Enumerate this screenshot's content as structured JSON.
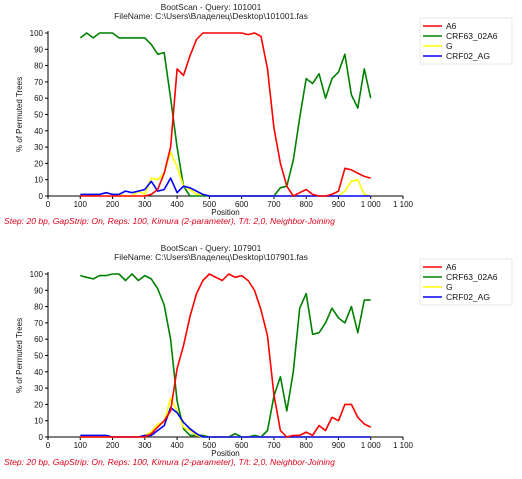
{
  "chart_data": [
    {
      "type": "line",
      "title": "BootScan - Query: 101001",
      "subtitle": "FileName: C:\\Users\\Владелец\\Desktop\\101001.fas",
      "xlabel": "Position",
      "ylabel": "% of Permuted Trees",
      "xlim": [
        0,
        1100
      ],
      "ylim": [
        0,
        100
      ],
      "x_ticks": [
        "0",
        "100",
        "200",
        "300",
        "400",
        "500",
        "600",
        "700",
        "800",
        "900",
        "1 000",
        "1 100"
      ],
      "y_ticks": [
        "0",
        "10",
        "20",
        "30",
        "40",
        "50",
        "60",
        "70",
        "80",
        "90",
        "100"
      ],
      "grid": false,
      "legend_position": "top-right",
      "caption": "Step: 20 bp, GapStrip: On, Reps: 100, Kimura (2-parameter), T/t: 2,0, Neighbor-Joining",
      "series": [
        {
          "name": "A6",
          "color": "#ff0000",
          "x": [
            100,
            120,
            140,
            160,
            180,
            200,
            220,
            240,
            260,
            280,
            300,
            320,
            340,
            360,
            380,
            400,
            420,
            440,
            460,
            480,
            500,
            520,
            540,
            560,
            580,
            600,
            620,
            640,
            660,
            680,
            700,
            720,
            740,
            760,
            780,
            800,
            820,
            840,
            860,
            880,
            900,
            920,
            940,
            960,
            980,
            1000
          ],
          "y": [
            0,
            0,
            0,
            0,
            0,
            0,
            0,
            0,
            0,
            0,
            0,
            1,
            4,
            14,
            30,
            78,
            74,
            86,
            96,
            100,
            100,
            100,
            100,
            100,
            100,
            100,
            99,
            100,
            98,
            78,
            42,
            20,
            6,
            0,
            2,
            4,
            1,
            0,
            0,
            1,
            3,
            17,
            16,
            14,
            12,
            11
          ]
        },
        {
          "name": "CRF63_02A6",
          "color": "#008000",
          "x": [
            100,
            120,
            140,
            160,
            180,
            200,
            220,
            240,
            260,
            280,
            300,
            320,
            340,
            360,
            380,
            400,
            420,
            440,
            460,
            480,
            500,
            520,
            540,
            560,
            580,
            600,
            620,
            640,
            660,
            680,
            700,
            720,
            740,
            760,
            780,
            800,
            820,
            840,
            860,
            880,
            900,
            920,
            940,
            960,
            980,
            1000
          ],
          "y": [
            97,
            100,
            97,
            100,
            100,
            100,
            97,
            97,
            97,
            97,
            97,
            93,
            87,
            88,
            60,
            30,
            6,
            0,
            0,
            0,
            0,
            0,
            0,
            0,
            0,
            0,
            0,
            0,
            0,
            0,
            0,
            5,
            6,
            22,
            48,
            72,
            69,
            75,
            60,
            72,
            76,
            87,
            62,
            54,
            78,
            60
          ]
        },
        {
          "name": "G",
          "color": "#ffff00",
          "x": [
            100,
            120,
            140,
            160,
            180,
            200,
            220,
            240,
            260,
            280,
            300,
            320,
            340,
            360,
            380,
            400,
            420,
            440,
            460,
            480,
            500,
            520,
            540,
            560,
            580,
            600,
            620,
            640,
            660,
            680,
            700,
            720,
            740,
            760,
            780,
            800,
            820,
            840,
            860,
            880,
            900,
            920,
            940,
            960,
            980,
            1000
          ],
          "y": [
            1,
            1,
            1,
            1,
            2,
            1,
            1,
            0,
            0,
            3,
            1,
            11,
            10,
            14,
            27,
            18,
            6,
            4,
            1,
            1,
            0,
            0,
            0,
            0,
            0,
            0,
            0,
            0,
            0,
            0,
            0,
            0,
            0,
            0,
            0,
            0,
            0,
            0,
            0,
            0,
            0,
            3,
            9,
            10,
            1,
            0
          ]
        },
        {
          "name": "CRF02_AG",
          "color": "#0000ff",
          "x": [
            100,
            120,
            140,
            160,
            180,
            200,
            220,
            240,
            260,
            280,
            300,
            320,
            340,
            360,
            380,
            400,
            420,
            440,
            460,
            480,
            500,
            520,
            540,
            560,
            580,
            600,
            620,
            640,
            660,
            680,
            700,
            720,
            740,
            760,
            780,
            800,
            820,
            840,
            860,
            880,
            900,
            920,
            940,
            960,
            980,
            1000
          ],
          "y": [
            1,
            1,
            1,
            1,
            2,
            1,
            1,
            3,
            2,
            3,
            4,
            9,
            3,
            4,
            11,
            2,
            6,
            5,
            3,
            1,
            0,
            0,
            0,
            0,
            0,
            0,
            0,
            0,
            0,
            0,
            0,
            0,
            0,
            0,
            0,
            0,
            0,
            0,
            0,
            0,
            0,
            0,
            0,
            0,
            0,
            0
          ]
        }
      ]
    },
    {
      "type": "line",
      "title": "BootScan - Query: 107901",
      "subtitle": "FileName: C:\\Users\\Владелец\\Desktop\\107901.fas",
      "xlabel": "Position",
      "ylabel": "% of Permuted Trees",
      "xlim": [
        0,
        1100
      ],
      "ylim": [
        0,
        100
      ],
      "x_ticks": [
        "0",
        "100",
        "200",
        "300",
        "400",
        "500",
        "600",
        "700",
        "800",
        "900",
        "1 000",
        "1 100"
      ],
      "y_ticks": [
        "0",
        "10",
        "20",
        "30",
        "40",
        "50",
        "60",
        "70",
        "80",
        "90",
        "100"
      ],
      "grid": false,
      "legend_position": "top-right",
      "caption": "Step: 20 bp, GapStrip: On, Reps: 100, Kimura (2-parameter), T/t: 2,0, Neighbor-Joining",
      "series": [
        {
          "name": "A6",
          "color": "#ff0000",
          "x": [
            100,
            120,
            140,
            160,
            180,
            200,
            220,
            240,
            260,
            280,
            300,
            320,
            340,
            360,
            380,
            400,
            420,
            440,
            460,
            480,
            500,
            520,
            540,
            560,
            580,
            600,
            620,
            640,
            660,
            680,
            700,
            720,
            740,
            760,
            780,
            800,
            820,
            840,
            860,
            880,
            900,
            920,
            940,
            960,
            980,
            1000
          ],
          "y": [
            0,
            0,
            0,
            0,
            0,
            0,
            0,
            0,
            0,
            0,
            0,
            2,
            6,
            10,
            16,
            42,
            56,
            74,
            88,
            96,
            100,
            98,
            96,
            100,
            98,
            99,
            96,
            90,
            78,
            62,
            26,
            4,
            0,
            1,
            1,
            3,
            1,
            7,
            4,
            12,
            10,
            20,
            20,
            12,
            8,
            6
          ]
        },
        {
          "name": "CRF63_02A6",
          "color": "#008000",
          "x": [
            100,
            120,
            140,
            160,
            180,
            200,
            220,
            240,
            260,
            280,
            300,
            320,
            340,
            360,
            380,
            400,
            420,
            440,
            460,
            480,
            500,
            520,
            540,
            560,
            580,
            600,
            620,
            640,
            660,
            680,
            700,
            720,
            740,
            760,
            780,
            800,
            820,
            840,
            860,
            880,
            900,
            920,
            940,
            960,
            980,
            1000
          ],
          "y": [
            99,
            98,
            97,
            99,
            99,
            100,
            100,
            96,
            100,
            96,
            99,
            97,
            91,
            81,
            60,
            22,
            5,
            1,
            1,
            1,
            0,
            0,
            0,
            0,
            2,
            0,
            0,
            1,
            0,
            4,
            25,
            37,
            16,
            40,
            79,
            88,
            63,
            64,
            70,
            79,
            73,
            70,
            80,
            64,
            84,
            84
          ]
        },
        {
          "name": "G",
          "color": "#ffff00",
          "x": [
            100,
            120,
            140,
            160,
            180,
            200,
            220,
            240,
            260,
            280,
            300,
            320,
            340,
            360,
            380,
            400,
            420,
            440,
            460,
            480,
            500,
            520,
            540,
            560,
            580,
            600,
            620,
            640,
            660,
            680,
            700,
            720,
            740,
            760,
            780,
            800,
            820,
            840,
            860,
            880,
            900,
            920,
            940,
            960,
            980,
            1000
          ],
          "y": [
            0,
            0,
            0,
            0,
            0,
            0,
            0,
            0,
            0,
            0,
            1,
            3,
            8,
            9,
            24,
            16,
            6,
            4,
            1,
            0,
            0,
            0,
            0,
            0,
            0,
            0,
            0,
            0,
            0,
            0,
            0,
            0,
            0,
            0,
            0,
            0,
            0,
            0,
            0,
            0,
            0,
            0,
            0,
            0,
            0,
            0
          ]
        },
        {
          "name": "CRF02_AG",
          "color": "#0000ff",
          "x": [
            100,
            120,
            140,
            160,
            180,
            200,
            220,
            240,
            260,
            280,
            300,
            320,
            340,
            360,
            380,
            400,
            420,
            440,
            460,
            480,
            500,
            520,
            540,
            560,
            580,
            600,
            620,
            640,
            660,
            680,
            700,
            720,
            740,
            760,
            780,
            800,
            820,
            840,
            860,
            880,
            900,
            920,
            940,
            960,
            980,
            1000
          ],
          "y": [
            1,
            1,
            1,
            1,
            1,
            0,
            0,
            0,
            0,
            0,
            1,
            1,
            4,
            7,
            18,
            15,
            9,
            5,
            2,
            0,
            0,
            0,
            0,
            0,
            0,
            0,
            0,
            0,
            0,
            0,
            0,
            0,
            0,
            0,
            0,
            0,
            0,
            0,
            0,
            0,
            0,
            0,
            0,
            0,
            0,
            0
          ]
        }
      ]
    }
  ]
}
